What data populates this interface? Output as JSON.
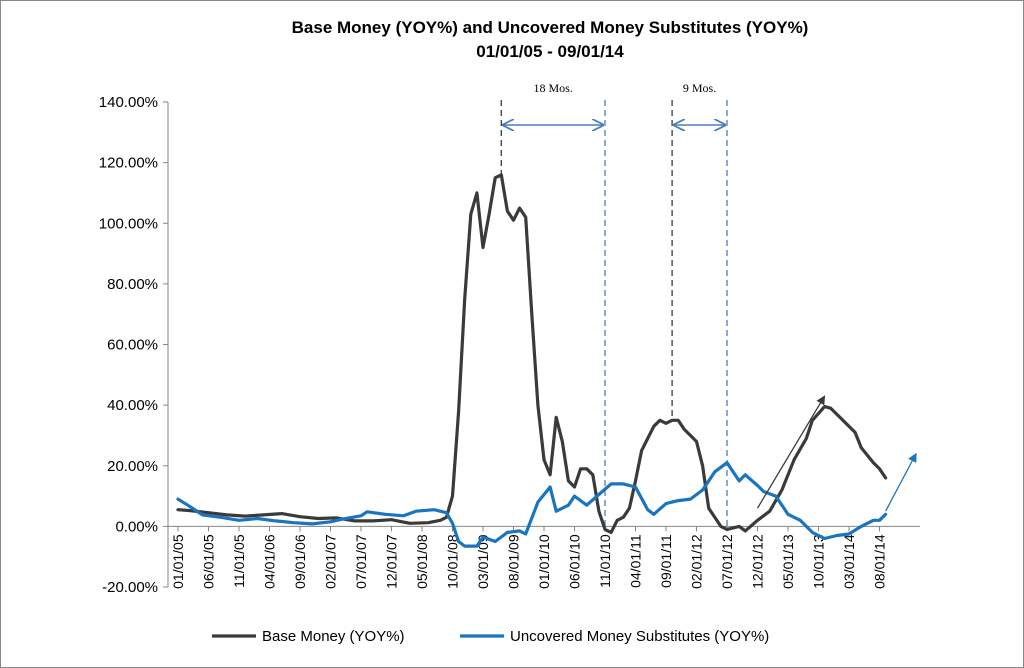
{
  "chart_data": {
    "type": "line",
    "title": "Base Money (YOY%) and Uncovered Money Substitutes (YOY%)",
    "subtitle": "01/01/05 - 09/01/14",
    "xlabel": "",
    "ylabel": "",
    "ylim": [
      -20,
      140
    ],
    "y_ticks": [
      "-20.00%",
      "0.00%",
      "20.00%",
      "40.00%",
      "60.00%",
      "80.00%",
      "100.00%",
      "120.00%",
      "140.00%"
    ],
    "x_range_months": [
      "2005-01",
      "2014-09"
    ],
    "x_tick_labels": [
      "01/01/05",
      "06/01/05",
      "11/01/05",
      "04/01/06",
      "09/01/06",
      "02/01/07",
      "07/01/07",
      "12/01/07",
      "05/01/08",
      "10/01/08",
      "03/01/09",
      "08/01/09",
      "01/01/10",
      "06/01/10",
      "11/01/10",
      "04/01/11",
      "09/01/11",
      "02/01/12",
      "07/01/12",
      "12/01/12",
      "05/01/13",
      "10/01/13",
      "03/01/14",
      "08/01/14"
    ],
    "grid": false,
    "legend_position": "bottom",
    "series": [
      {
        "name": "Base Money (YOY%)",
        "color": "#3a3a3a",
        "points": [
          [
            "2005-01",
            5.5
          ],
          [
            "2005-03",
            5.2
          ],
          [
            "2005-06",
            4.5
          ],
          [
            "2005-09",
            3.8
          ],
          [
            "2005-12",
            3.4
          ],
          [
            "2006-03",
            3.8
          ],
          [
            "2006-06",
            4.2
          ],
          [
            "2006-09",
            3.2
          ],
          [
            "2006-12",
            2.6
          ],
          [
            "2007-03",
            2.8
          ],
          [
            "2007-06",
            1.8
          ],
          [
            "2007-09",
            1.8
          ],
          [
            "2007-12",
            2.2
          ],
          [
            "2008-03",
            1.0
          ],
          [
            "2008-06",
            1.2
          ],
          [
            "2008-08",
            2.0
          ],
          [
            "2008-09",
            3.0
          ],
          [
            "2008-10",
            10
          ],
          [
            "2008-11",
            38
          ],
          [
            "2008-12",
            75
          ],
          [
            "2009-01",
            103
          ],
          [
            "2009-02",
            110
          ],
          [
            "2009-03",
            92
          ],
          [
            "2009-04",
            103
          ],
          [
            "2009-05",
            115
          ],
          [
            "2009-06",
            116
          ],
          [
            "2009-07",
            104
          ],
          [
            "2009-08",
            101
          ],
          [
            "2009-09",
            105
          ],
          [
            "2009-10",
            102
          ],
          [
            "2009-11",
            70
          ],
          [
            "2009-12",
            40
          ],
          [
            "2010-01",
            22
          ],
          [
            "2010-02",
            17
          ],
          [
            "2010-03",
            36
          ],
          [
            "2010-04",
            28
          ],
          [
            "2010-05",
            15
          ],
          [
            "2010-06",
            13
          ],
          [
            "2010-07",
            19
          ],
          [
            "2010-08",
            19
          ],
          [
            "2010-09",
            17
          ],
          [
            "2010-10",
            5
          ],
          [
            "2010-11",
            -1
          ],
          [
            "2010-12",
            -2
          ],
          [
            "2011-01",
            2
          ],
          [
            "2011-02",
            3
          ],
          [
            "2011-03",
            6
          ],
          [
            "2011-04",
            15
          ],
          [
            "2011-05",
            25
          ],
          [
            "2011-07",
            33
          ],
          [
            "2011-08",
            35
          ],
          [
            "2011-09",
            34
          ],
          [
            "2011-10",
            35
          ],
          [
            "2011-11",
            35
          ],
          [
            "2011-12",
            32
          ],
          [
            "2012-02",
            28
          ],
          [
            "2012-03",
            20
          ],
          [
            "2012-04",
            6
          ],
          [
            "2012-06",
            0
          ],
          [
            "2012-07",
            -1
          ],
          [
            "2012-09",
            0
          ],
          [
            "2012-10",
            -1.5
          ],
          [
            "2012-12",
            2
          ],
          [
            "2013-02",
            5
          ],
          [
            "2013-04",
            12
          ],
          [
            "2013-06",
            22
          ],
          [
            "2013-08",
            29
          ],
          [
            "2013-09",
            35
          ],
          [
            "2013-11",
            39.5
          ],
          [
            "2013-12",
            39
          ],
          [
            "2014-02",
            35
          ],
          [
            "2014-04",
            31
          ],
          [
            "2014-05",
            26
          ],
          [
            "2014-07",
            21
          ],
          [
            "2014-08",
            19
          ],
          [
            "2014-09",
            16
          ]
        ]
      },
      {
        "name": "Uncovered Money Substitutes (YOY%)",
        "color": "#1a75c0",
        "points": [
          [
            "2005-01",
            9.0
          ],
          [
            "2005-03",
            6.5
          ],
          [
            "2005-05",
            3.8
          ],
          [
            "2005-08",
            3.0
          ],
          [
            "2005-11",
            2.0
          ],
          [
            "2006-02",
            2.6
          ],
          [
            "2006-05",
            1.8
          ],
          [
            "2006-08",
            1.2
          ],
          [
            "2006-11",
            0.8
          ],
          [
            "2007-02",
            1.5
          ],
          [
            "2007-04",
            2.4
          ],
          [
            "2007-07",
            3.5
          ],
          [
            "2007-08",
            4.8
          ],
          [
            "2007-11",
            4.0
          ],
          [
            "2008-02",
            3.5
          ],
          [
            "2008-04",
            5.0
          ],
          [
            "2008-07",
            5.5
          ],
          [
            "2008-09",
            4.5
          ],
          [
            "2008-10",
            1.0
          ],
          [
            "2008-11",
            -5
          ],
          [
            "2008-12",
            -6.5
          ],
          [
            "2009-02",
            -6.5
          ],
          [
            "2009-03",
            -3.5
          ],
          [
            "2009-05",
            -5
          ],
          [
            "2009-07",
            -2
          ],
          [
            "2009-09",
            -1.5
          ],
          [
            "2009-10",
            -2.5
          ],
          [
            "2009-12",
            8
          ],
          [
            "2010-02",
            13
          ],
          [
            "2010-03",
            5
          ],
          [
            "2010-05",
            7
          ],
          [
            "2010-06",
            10
          ],
          [
            "2010-08",
            7
          ],
          [
            "2010-10",
            10.5
          ],
          [
            "2010-12",
            14
          ],
          [
            "2011-02",
            14
          ],
          [
            "2011-04",
            13
          ],
          [
            "2011-06",
            5.5
          ],
          [
            "2011-07",
            4
          ],
          [
            "2011-09",
            7.5
          ],
          [
            "2011-11",
            8.5
          ],
          [
            "2012-01",
            9
          ],
          [
            "2012-03",
            12
          ],
          [
            "2012-05",
            18
          ],
          [
            "2012-07",
            21
          ],
          [
            "2012-09",
            15
          ],
          [
            "2012-10",
            17
          ],
          [
            "2012-12",
            13.5
          ],
          [
            "2013-01",
            11.5
          ],
          [
            "2013-03",
            10
          ],
          [
            "2013-05",
            4
          ],
          [
            "2013-07",
            2
          ],
          [
            "2013-09",
            -2
          ],
          [
            "2013-11",
            -4
          ],
          [
            "2014-01",
            -3
          ],
          [
            "2014-03",
            -2.5
          ],
          [
            "2014-05",
            0
          ],
          [
            "2014-07",
            2
          ],
          [
            "2014-08",
            2
          ],
          [
            "2014-09",
            4
          ]
        ]
      }
    ],
    "annotations": [
      {
        "label": "18 Mos.",
        "from": "2009-06",
        "to": "2010-11",
        "color": "#4a7ebb"
      },
      {
        "label": "9 Mos.",
        "from": "2011-10",
        "to": "2012-07",
        "color": "#4a7ebb"
      }
    ],
    "trend_arrows": [
      {
        "color": "#3a3a3a",
        "from": [
          "2012-12",
          6
        ],
        "to": [
          "2013-11",
          43
        ]
      },
      {
        "color": "#1a75c0",
        "from": [
          "2014-09",
          5
        ],
        "to": [
          "2015-02",
          24
        ]
      }
    ]
  }
}
